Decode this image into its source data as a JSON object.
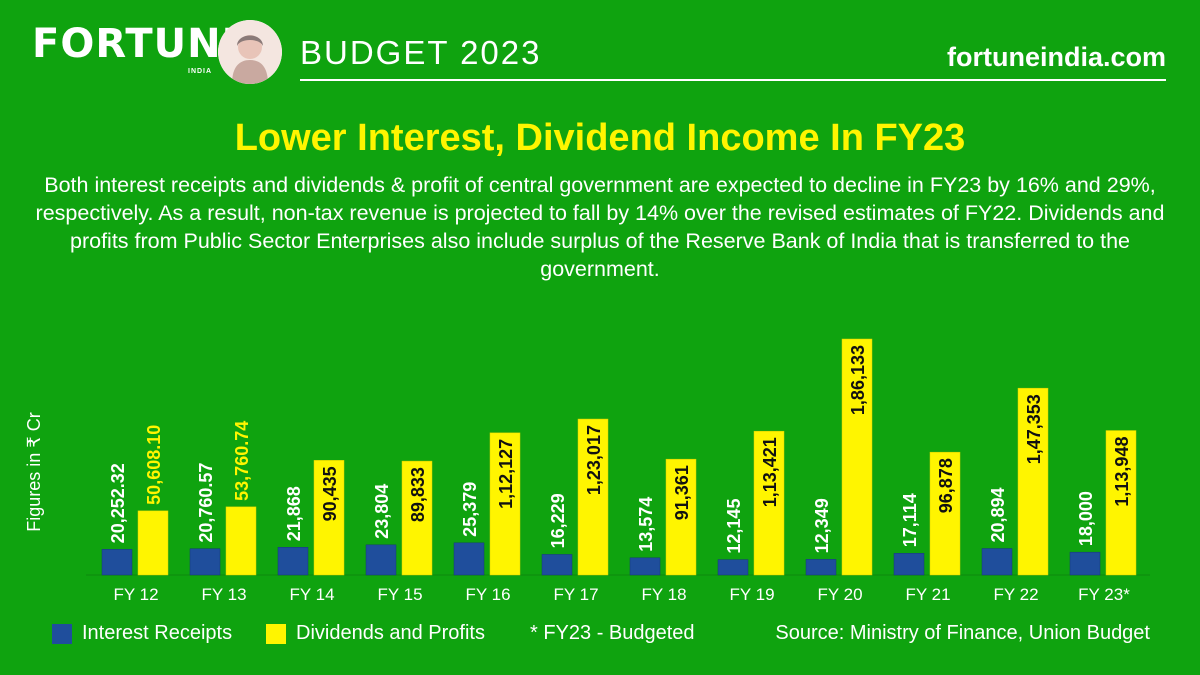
{
  "header": {
    "logo_text": "FORTUNE",
    "logo_sub": "INDIA",
    "budget_label": "BUDGET 2023",
    "site": "fortuneindia.com"
  },
  "headline": "Lower Interest, Dividend Income In FY23",
  "description": "Both interest receipts and dividends & profit of central government are expected to decline in FY23 by 16% and 29%, respectively. As a result, non-tax revenue is projected to fall by 14% over the revised estimates of FY22. Dividends and profits from Public Sector Enterprises also include surplus of the Reserve Bank of India that is transferred to the government.",
  "colors": {
    "background": "#0fa30f",
    "interest": "#1f4e9c",
    "dividends": "#fff500",
    "title": "#fff500"
  },
  "chart_data": {
    "type": "bar",
    "ylabel": "Figures in ₹ Cr",
    "categories": [
      "FY 12",
      "FY 13",
      "FY 14",
      "FY 15",
      "FY 16",
      "FY 17",
      "FY 18",
      "FY 19",
      "FY 20",
      "FY 21",
      "FY 22",
      "FY 23*"
    ],
    "series": [
      {
        "name": "Interest Receipts",
        "color": "#1f4e9c",
        "values": [
          20252.32,
          20760.57,
          21868,
          23804,
          25379,
          16229,
          13574,
          12145,
          12349,
          17114,
          20894,
          18000
        ],
        "labels": [
          "20,252.32",
          "20,760.57",
          "21,868",
          "23,804",
          "25,379",
          "16,229",
          "13,574",
          "12,145",
          "12,349",
          "17,114",
          "20,894",
          "18,000"
        ]
      },
      {
        "name": "Dividends and Profits",
        "color": "#fff500",
        "values": [
          50608.1,
          53760.74,
          90435,
          89833,
          112127,
          123017,
          91361,
          113421,
          186133,
          96878,
          147353,
          113948
        ],
        "labels": [
          "50,608.10",
          "53,760.74",
          "90,435",
          "89,833",
          "1,12,127",
          "1,23,017",
          "91,361",
          "1,13,421",
          "1,86,133",
          "96,878",
          "1,47,353",
          "1,13,948"
        ]
      }
    ],
    "legend": "bottom"
  },
  "footnote": "* FY23 - Budgeted",
  "source": "Source: Ministry of Finance, Union Budget"
}
